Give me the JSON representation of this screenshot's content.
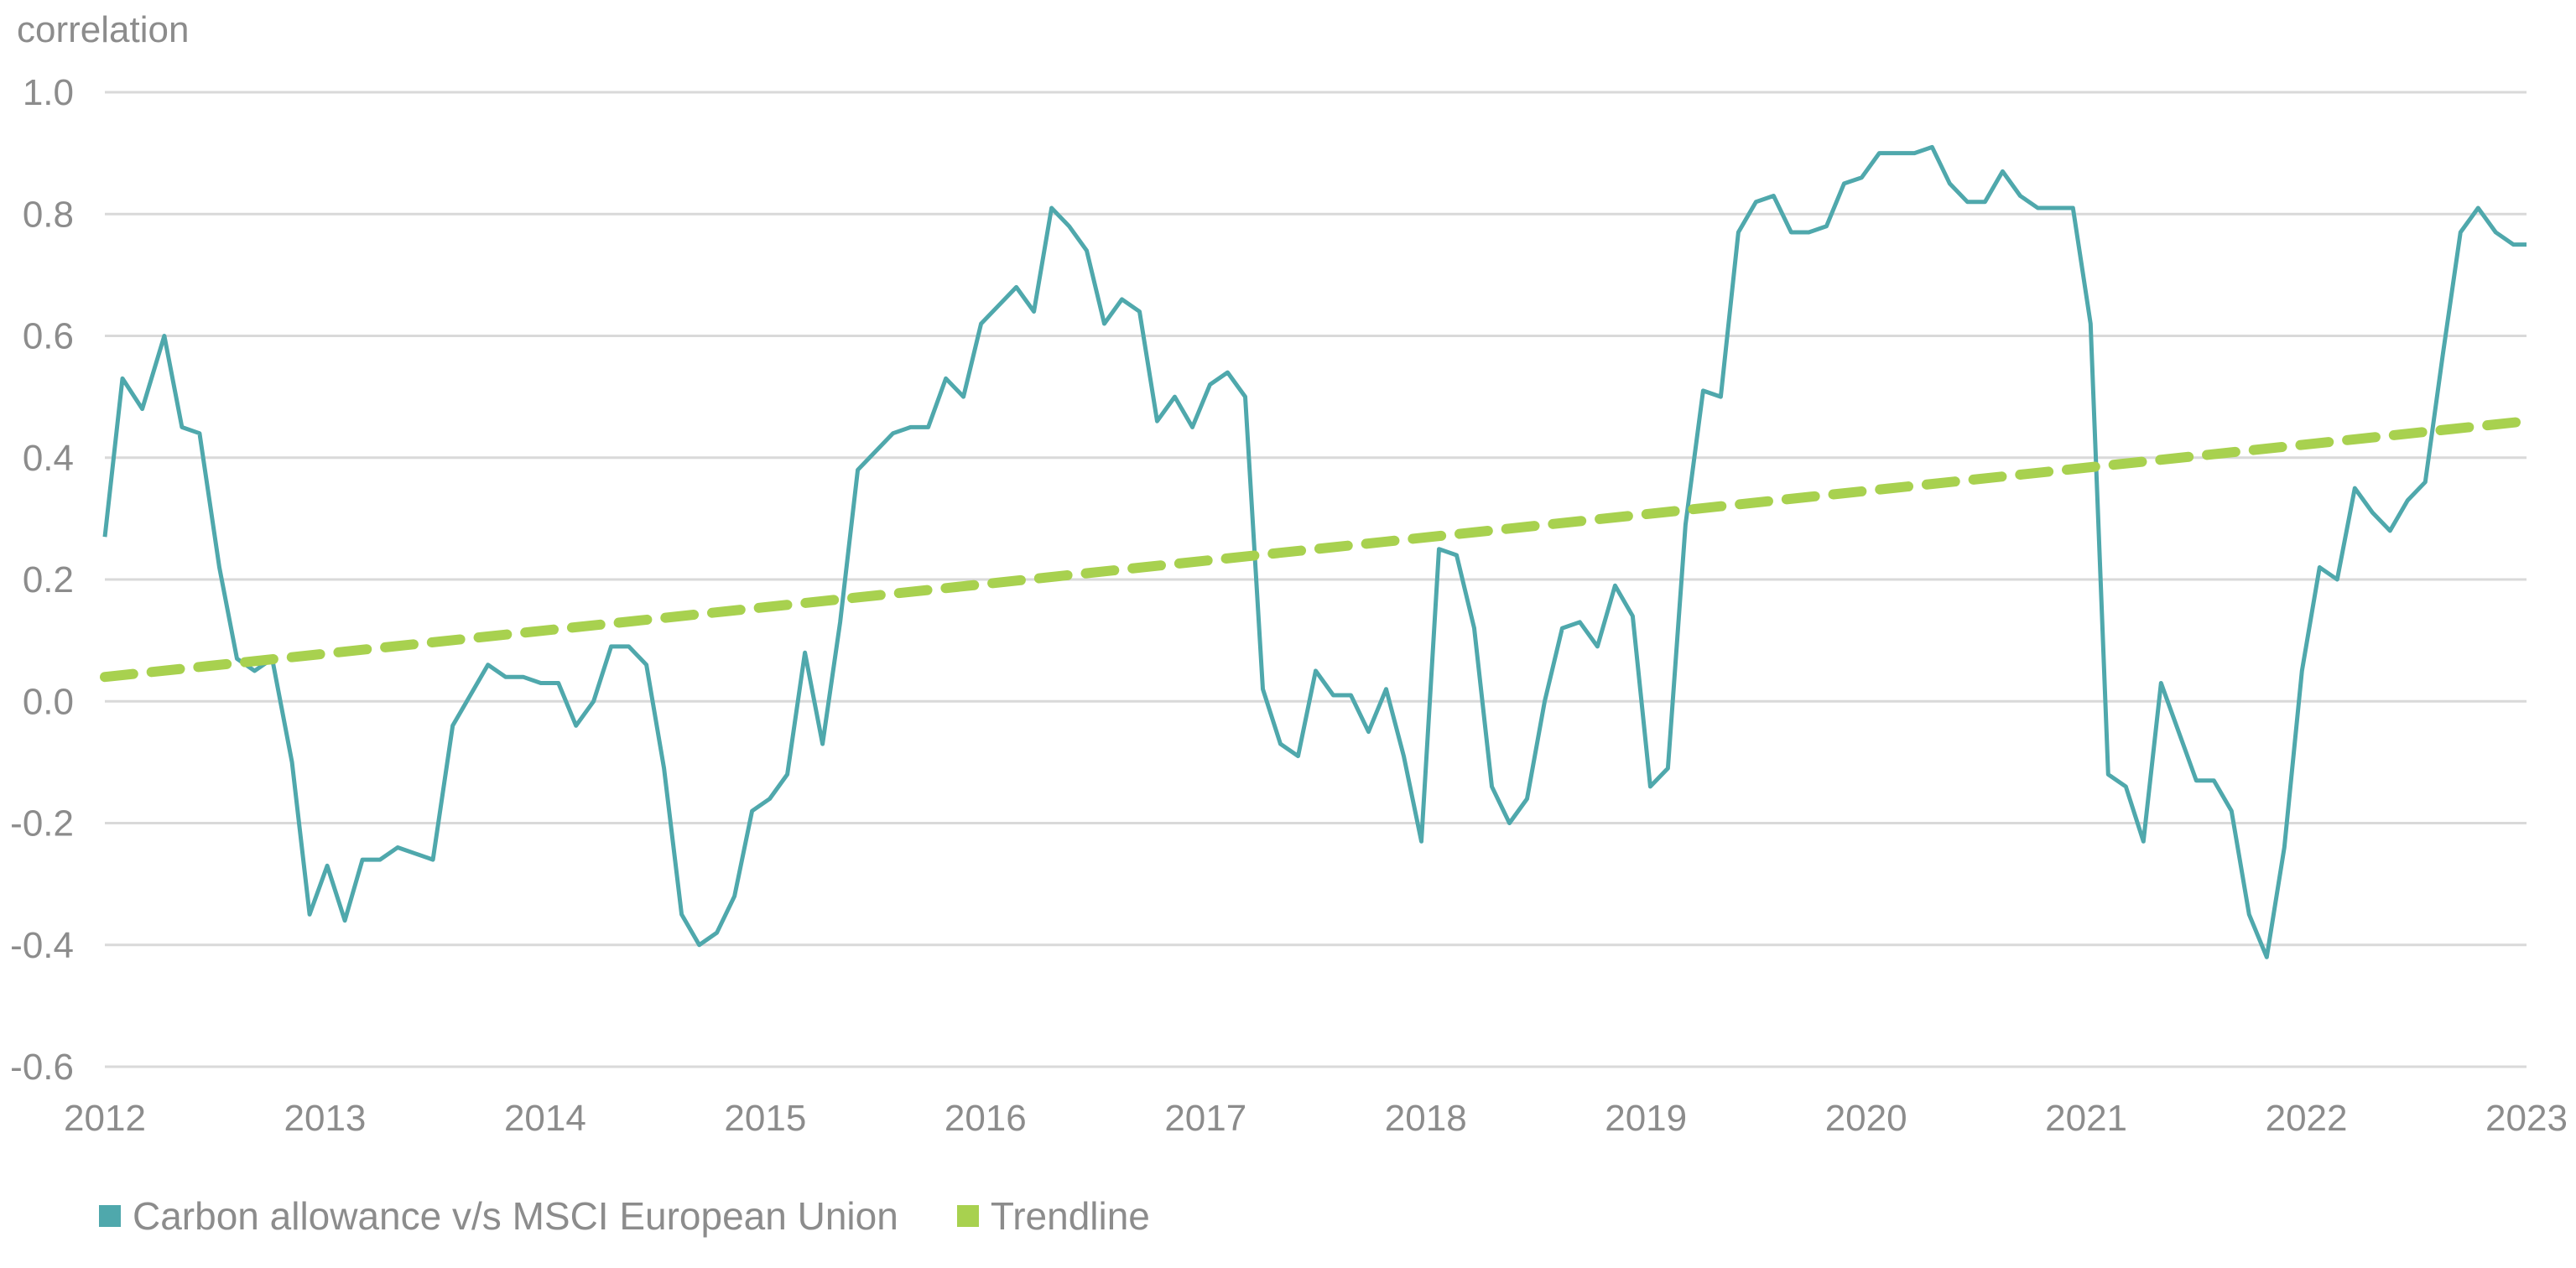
{
  "chart_data": {
    "type": "line",
    "ylabel": "correlation",
    "xlabel": "",
    "title": "",
    "xlim": [
      2012,
      2023
    ],
    "ylim": [
      -0.6,
      1.0
    ],
    "yticks": [
      -0.6,
      -0.4,
      -0.2,
      0.0,
      0.2,
      0.4,
      0.6,
      0.8,
      1.0
    ],
    "ytick_labels": [
      "-0.6",
      "-0.4",
      "-0.2",
      "0.0",
      "0.2",
      "0.4",
      "0.6",
      "0.8",
      "1.0"
    ],
    "xticks": [
      2012,
      2013,
      2014,
      2015,
      2016,
      2017,
      2018,
      2019,
      2020,
      2021,
      2022,
      2023
    ],
    "xtick_labels": [
      "2012",
      "2013",
      "2014",
      "2015",
      "2016",
      "2017",
      "2018",
      "2019",
      "2020",
      "2021",
      "2022",
      "2023"
    ],
    "grid": true,
    "legend_position": "bottom-left",
    "series": [
      {
        "name": "Carbon allowance v/s MSCI European Union",
        "color": "#4fa8ac",
        "style": "solid",
        "x": [
          2012.0,
          2012.08,
          2012.17,
          2012.27,
          2012.35,
          2012.43,
          2012.52,
          2012.6,
          2012.68,
          2012.76,
          2012.85,
          2012.93,
          2013.01,
          2013.09,
          2013.17,
          2013.25,
          2013.33,
          2013.41,
          2013.49,
          2013.58,
          2013.66,
          2013.74,
          2013.82,
          2013.9,
          2013.98,
          2014.06,
          2014.14,
          2014.22,
          2014.3,
          2014.38,
          2014.46,
          2014.54,
          2014.62,
          2014.7,
          2014.78,
          2014.86,
          2014.94,
          2015.02,
          2015.1,
          2015.18,
          2015.26,
          2015.34,
          2015.42,
          2015.5,
          2015.58,
          2015.66,
          2015.74,
          2015.82,
          2015.9,
          2015.98,
          2016.06,
          2016.14,
          2016.22,
          2016.3,
          2016.38,
          2016.46,
          2016.54,
          2016.62,
          2016.7,
          2016.78,
          2016.86,
          2016.94,
          2017.02,
          2017.1,
          2017.18,
          2017.26,
          2017.34,
          2017.42,
          2017.5,
          2017.58,
          2017.66,
          2017.74,
          2017.82,
          2017.9,
          2017.98,
          2018.06,
          2018.14,
          2018.22,
          2018.3,
          2018.38,
          2018.46,
          2018.54,
          2018.62,
          2018.7,
          2018.78,
          2018.86,
          2018.94,
          2019.02,
          2019.1,
          2019.18,
          2019.26,
          2019.34,
          2019.42,
          2019.5,
          2019.58,
          2019.66,
          2019.74,
          2019.82,
          2019.9,
          2019.98,
          2020.06,
          2020.14,
          2020.22,
          2020.3,
          2020.38,
          2020.46,
          2020.54,
          2020.62,
          2020.7,
          2020.78,
          2020.86,
          2020.94,
          2021.02,
          2021.1,
          2021.18,
          2021.26,
          2021.34,
          2021.42,
          2021.5,
          2021.58,
          2021.66,
          2021.74,
          2021.82,
          2021.9,
          2021.98,
          2022.06,
          2022.14,
          2022.22,
          2022.3,
          2022.38,
          2022.46,
          2022.54,
          2022.62,
          2022.7,
          2022.78,
          2022.86,
          2022.94,
          2023.0
        ],
        "values": [
          0.27,
          0.53,
          0.48,
          0.6,
          0.45,
          0.44,
          0.22,
          0.07,
          0.05,
          0.07,
          -0.1,
          -0.35,
          -0.27,
          -0.36,
          -0.26,
          -0.26,
          -0.24,
          -0.25,
          -0.26,
          -0.04,
          0.01,
          0.06,
          0.04,
          0.04,
          0.03,
          0.03,
          -0.04,
          0.0,
          0.09,
          0.09,
          0.06,
          -0.11,
          -0.35,
          -0.4,
          -0.38,
          -0.32,
          -0.18,
          -0.16,
          -0.12,
          0.08,
          -0.07,
          0.13,
          0.38,
          0.41,
          0.44,
          0.45,
          0.45,
          0.53,
          0.5,
          0.62,
          0.65,
          0.68,
          0.64,
          0.81,
          0.78,
          0.74,
          0.62,
          0.66,
          0.64,
          0.46,
          0.5,
          0.45,
          0.52,
          0.54,
          0.5,
          0.02,
          -0.07,
          -0.09,
          0.05,
          0.01,
          0.01,
          -0.05,
          0.02,
          -0.09,
          -0.23,
          0.25,
          0.24,
          0.12,
          -0.14,
          -0.2,
          -0.16,
          0.0,
          0.12,
          0.13,
          0.09,
          0.19,
          0.14,
          -0.14,
          -0.11,
          0.29,
          0.51,
          0.5,
          0.77,
          0.82,
          0.83,
          0.77,
          0.77,
          0.78,
          0.85,
          0.86,
          0.9,
          0.9,
          0.9,
          0.91,
          0.85,
          0.82,
          0.82,
          0.87,
          0.83,
          0.81,
          0.81,
          0.81,
          0.62,
          -0.12,
          -0.14,
          -0.23,
          0.03,
          -0.05,
          -0.13,
          -0.13,
          -0.18,
          -0.35,
          -0.42,
          -0.24,
          0.05,
          0.22,
          0.2,
          0.35,
          0.31,
          0.28,
          0.33,
          0.36,
          0.57,
          0.77,
          0.81,
          0.77,
          0.75,
          0.75
        ]
      },
      {
        "name": "Trendline",
        "color": "#a8d14f",
        "style": "dashed",
        "x": [
          2012.0,
          2023.0
        ],
        "values": [
          0.04,
          0.46
        ]
      }
    ]
  },
  "legend": {
    "items": [
      {
        "label": "Carbon allowance v/s MSCI European Union",
        "color": "#4fa8ac"
      },
      {
        "label": "Trendline",
        "color": "#a8d14f"
      }
    ]
  }
}
